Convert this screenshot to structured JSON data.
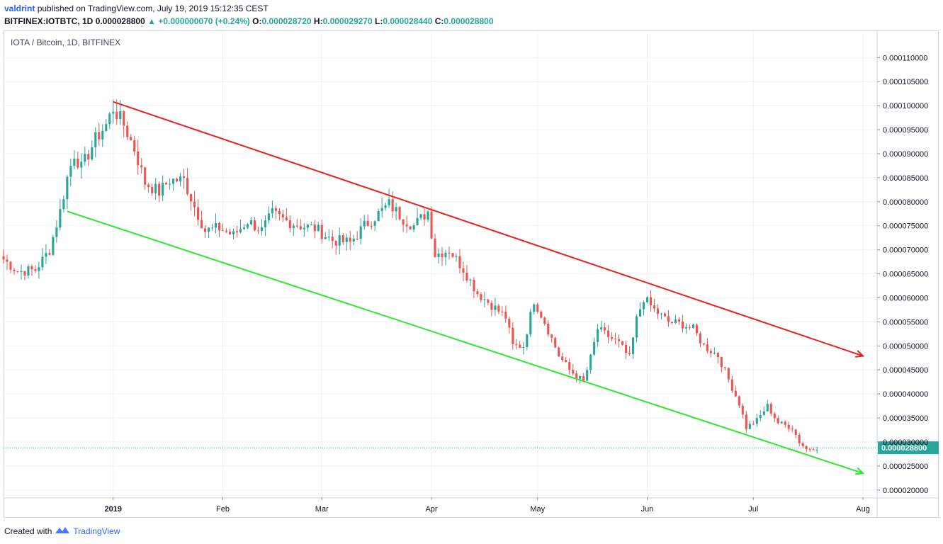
{
  "header": {
    "author": "valdrint",
    "published_text": "published on TradingView.com, July 19, 2019 15:12:35 CEST",
    "symbol": "BITFINEX:IOTBTC, 1D",
    "last": "0.000028800",
    "change": "+0.000000070 (+0.24%)",
    "o_label": "O:",
    "o_value": "0.000028720",
    "h_label": "H:",
    "h_value": "0.000029270",
    "l_label": "L:",
    "l_value": "0.000028440",
    "c_label": "C:",
    "c_value": "0.000028800"
  },
  "pane_title": "IOTA / Bitcoin, 1D, BITFINEX",
  "footer": {
    "created_with": "Created with",
    "brand": "TradingView"
  },
  "colors": {
    "up": "#26a69a",
    "down": "#ef5350",
    "resistance": "#e8201a",
    "support": "#2ee82e",
    "grid": "#eef0f3",
    "price_line": "#26a69a"
  },
  "chart_data": {
    "type": "candlestick",
    "title": "IOTA / Bitcoin, 1D, BITFINEX",
    "y_ticks": [
      "0.000020000",
      "0.000025000",
      "0.000030000",
      "0.000035000",
      "0.000040000",
      "0.000045000",
      "0.000050000",
      "0.000055000",
      "0.000060000",
      "0.000065000",
      "0.000070000",
      "0.000075000",
      "0.000080000",
      "0.000085000",
      "0.000090000",
      "0.000095000",
      "0.000100000",
      "0.000105000",
      "0.000110000"
    ],
    "ylim": [
      1.85e-05,
      0.0001155
    ],
    "x_ticks": [
      {
        "label": "2019",
        "date": "2019-01-01"
      },
      {
        "label": "Feb",
        "date": "2019-02-01"
      },
      {
        "label": "Mar",
        "date": "2019-03-01"
      },
      {
        "label": "Apr",
        "date": "2019-04-01"
      },
      {
        "label": "May",
        "date": "2019-05-01"
      },
      {
        "label": "Jun",
        "date": "2019-06-01"
      },
      {
        "label": "Jul",
        "date": "2019-07-01"
      },
      {
        "label": "Aug",
        "date": "2019-08-01"
      }
    ],
    "xlim": [
      "2018-12-01",
      "2019-08-05"
    ],
    "last_price_label": "0.000028800",
    "last_price": 2.88e-05,
    "keypoints": [
      {
        "date": "2018-12-01",
        "close": 6.8e-05
      },
      {
        "date": "2018-12-05",
        "close": 6.55e-05
      },
      {
        "date": "2018-12-10",
        "close": 6.58e-05
      },
      {
        "date": "2018-12-14",
        "close": 7e-05
      },
      {
        "date": "2018-12-17",
        "close": 7.8e-05
      },
      {
        "date": "2018-12-19",
        "close": 8.5e-05
      },
      {
        "date": "2018-12-21",
        "close": 9e-05
      },
      {
        "date": "2018-12-23",
        "close": 8.7e-05
      },
      {
        "date": "2018-12-27",
        "close": 9.3e-05
      },
      {
        "date": "2018-12-30",
        "close": 9.6e-05
      },
      {
        "date": "2019-01-01",
        "close": 9.95e-05
      },
      {
        "date": "2019-01-04",
        "close": 9.6e-05
      },
      {
        "date": "2019-01-07",
        "close": 9.1e-05
      },
      {
        "date": "2019-01-10",
        "close": 8.4e-05
      },
      {
        "date": "2019-01-14",
        "close": 8.2e-05
      },
      {
        "date": "2019-01-17",
        "close": 8.45e-05
      },
      {
        "date": "2019-01-21",
        "close": 8.45e-05
      },
      {
        "date": "2019-01-24",
        "close": 7.9e-05
      },
      {
        "date": "2019-01-27",
        "close": 7.4e-05
      },
      {
        "date": "2019-01-31",
        "close": 7.45e-05
      },
      {
        "date": "2019-02-04",
        "close": 7.3e-05
      },
      {
        "date": "2019-02-08",
        "close": 7.6e-05
      },
      {
        "date": "2019-02-12",
        "close": 7.4e-05
      },
      {
        "date": "2019-02-15",
        "close": 7.75e-05
      },
      {
        "date": "2019-02-19",
        "close": 7.6e-05
      },
      {
        "date": "2019-02-23",
        "close": 7.5e-05
      },
      {
        "date": "2019-02-27",
        "close": 7.45e-05
      },
      {
        "date": "2019-03-04",
        "close": 7.2e-05
      },
      {
        "date": "2019-03-09",
        "close": 7.15e-05
      },
      {
        "date": "2019-03-13",
        "close": 7.5e-05
      },
      {
        "date": "2019-03-17",
        "close": 7.75e-05
      },
      {
        "date": "2019-03-20",
        "close": 7.95e-05
      },
      {
        "date": "2019-03-24",
        "close": 7.65e-05
      },
      {
        "date": "2019-03-27",
        "close": 7.5e-05
      },
      {
        "date": "2019-03-31",
        "close": 7.8e-05
      },
      {
        "date": "2019-04-02",
        "close": 6.9e-05
      },
      {
        "date": "2019-04-06",
        "close": 7e-05
      },
      {
        "date": "2019-04-10",
        "close": 6.6e-05
      },
      {
        "date": "2019-04-14",
        "close": 6.1e-05
      },
      {
        "date": "2019-04-18",
        "close": 5.85e-05
      },
      {
        "date": "2019-04-22",
        "close": 5.6e-05
      },
      {
        "date": "2019-04-24",
        "close": 5e-05
      },
      {
        "date": "2019-04-27",
        "close": 5e-05
      },
      {
        "date": "2019-04-30",
        "close": 5.95e-05
      },
      {
        "date": "2019-05-03",
        "close": 5.5e-05
      },
      {
        "date": "2019-05-07",
        "close": 4.8e-05
      },
      {
        "date": "2019-05-10",
        "close": 4.5e-05
      },
      {
        "date": "2019-05-14",
        "close": 4.25e-05
      },
      {
        "date": "2019-05-16",
        "close": 4.75e-05
      },
      {
        "date": "2019-05-18",
        "close": 5.35e-05
      },
      {
        "date": "2019-05-21",
        "close": 5.2e-05
      },
      {
        "date": "2019-05-24",
        "close": 5.05e-05
      },
      {
        "date": "2019-05-27",
        "close": 4.75e-05
      },
      {
        "date": "2019-05-29",
        "close": 5.55e-05
      },
      {
        "date": "2019-05-31",
        "close": 6e-05
      },
      {
        "date": "2019-06-03",
        "close": 5.75e-05
      },
      {
        "date": "2019-06-07",
        "close": 5.5e-05
      },
      {
        "date": "2019-06-11",
        "close": 5.45e-05
      },
      {
        "date": "2019-06-14",
        "close": 5.35e-05
      },
      {
        "date": "2019-06-17",
        "close": 5e-05
      },
      {
        "date": "2019-06-21",
        "close": 4.8e-05
      },
      {
        "date": "2019-06-24",
        "close": 4.3e-05
      },
      {
        "date": "2019-06-27",
        "close": 3.8e-05
      },
      {
        "date": "2019-06-29",
        "close": 3.3e-05
      },
      {
        "date": "2019-07-02",
        "close": 3.45e-05
      },
      {
        "date": "2019-07-05",
        "close": 3.75e-05
      },
      {
        "date": "2019-07-08",
        "close": 3.4e-05
      },
      {
        "date": "2019-07-12",
        "close": 3.3e-05
      },
      {
        "date": "2019-07-14",
        "close": 3e-05
      },
      {
        "date": "2019-07-16",
        "close": 2.85e-05
      },
      {
        "date": "2019-07-18",
        "close": 2.88e-05
      },
      {
        "date": "2019-07-19",
        "close": 2.88e-05
      }
    ],
    "trendlines": [
      {
        "name": "resistance",
        "from": {
          "date": "2019-01-01",
          "price": 0.0001008
        },
        "to": {
          "date": "2019-08-01",
          "price": 4.79e-05
        },
        "arrow": true
      },
      {
        "name": "support",
        "from": {
          "date": "2018-12-19",
          "price": 7.8e-05
        },
        "to": {
          "date": "2019-08-01",
          "price": 2.35e-05
        },
        "arrow": true
      }
    ]
  }
}
